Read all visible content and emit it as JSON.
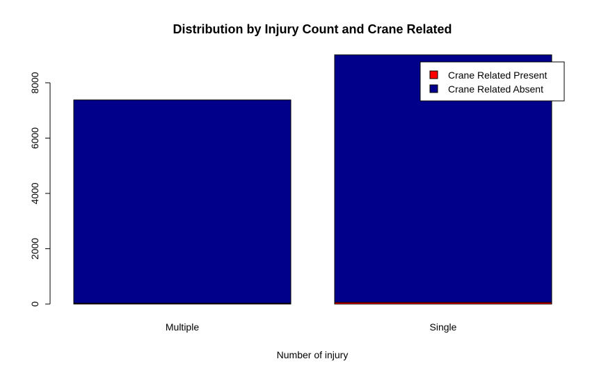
{
  "chart_data": {
    "type": "bar",
    "stacked": true,
    "title": "Distribution by Injury Count and Crane Related",
    "xlabel": "Number of injury",
    "ylabel": "",
    "categories": [
      "Multiple",
      "Single"
    ],
    "series": [
      {
        "name": "Crane Related Present",
        "color": "#ff0000",
        "values": [
          30,
          60
        ]
      },
      {
        "name": "Crane Related Absent",
        "color": "#00008b",
        "values": [
          7350,
          8950
        ]
      }
    ],
    "ylim": [
      0,
      9000
    ],
    "yticks": [
      0,
      2000,
      4000,
      6000,
      8000
    ],
    "grid": false,
    "legend": {
      "position": "top-right",
      "entries": [
        "Crane Related Present",
        "Crane Related Absent"
      ]
    }
  }
}
